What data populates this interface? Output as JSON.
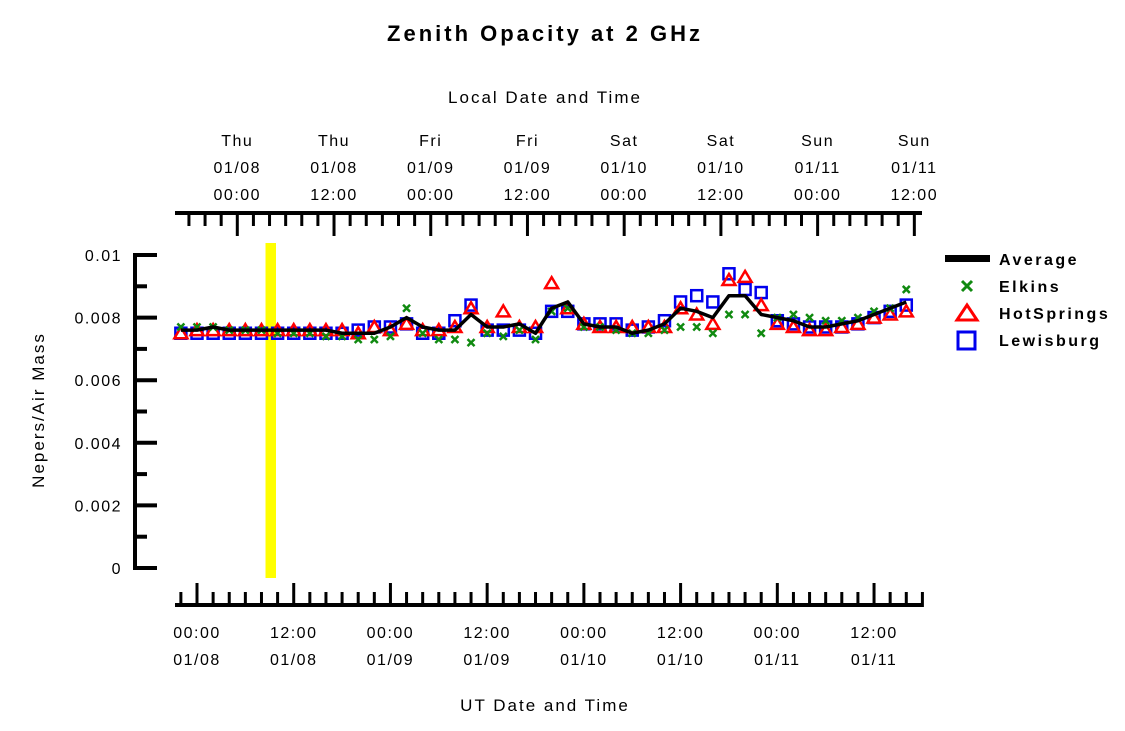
{
  "chart_data": {
    "type": "scatter",
    "title": "Zenith Opacity at 2 GHz",
    "xlabel": "UT Date and Time",
    "xlabel_top": "Local Date and Time",
    "ylabel": "Nepers/Air Mass",
    "x_units": "hours since 01/08 00:00 UT",
    "xlim": [
      -2.7,
      90
    ],
    "ylim": [
      0,
      0.01
    ],
    "yticks": [
      {
        "value": 0,
        "label": "0"
      },
      {
        "value": 0.002,
        "label": "0.002"
      },
      {
        "value": 0.004,
        "label": "0.004"
      },
      {
        "value": 0.006,
        "label": "0.006"
      },
      {
        "value": 0.008,
        "label": "0.008"
      },
      {
        "value": 0.01,
        "label": "0.01"
      }
    ],
    "xticks_bottom": [
      {
        "value": 0,
        "time": "00:00",
        "date": "01/08"
      },
      {
        "value": 12,
        "time": "12:00",
        "date": "01/08"
      },
      {
        "value": 24,
        "time": "00:00",
        "date": "01/09"
      },
      {
        "value": 36,
        "time": "12:00",
        "date": "01/09"
      },
      {
        "value": 48,
        "time": "00:00",
        "date": "01/10"
      },
      {
        "value": 60,
        "time": "12:00",
        "date": "01/10"
      },
      {
        "value": 72,
        "time": "00:00",
        "date": "01/11"
      },
      {
        "value": 84,
        "time": "12:00",
        "date": "01/11"
      }
    ],
    "xticks_top": [
      {
        "value": 5,
        "day": "Thu",
        "date": "01/08",
        "time": "00:00"
      },
      {
        "value": 17,
        "day": "Thu",
        "date": "01/08",
        "time": "12:00"
      },
      {
        "value": 29,
        "day": "Fri",
        "date": "01/09",
        "time": "00:00"
      },
      {
        "value": 41,
        "day": "Fri",
        "date": "01/09",
        "time": "12:00"
      },
      {
        "value": 53,
        "day": "Sat",
        "date": "01/10",
        "time": "00:00"
      },
      {
        "value": 65,
        "day": "Sat",
        "date": "01/10",
        "time": "12:00"
      },
      {
        "value": 77,
        "day": "Sun",
        "date": "01/11",
        "time": "00:00"
      },
      {
        "value": 89,
        "day": "Sun",
        "date": "01/11",
        "time": "12:00"
      }
    ],
    "highlight_band": {
      "x_range": [
        8.5,
        9.8
      ],
      "color": "#ffff00"
    },
    "legend_position": "right",
    "x": [
      -2,
      0,
      2,
      4,
      6,
      8,
      10,
      12,
      14,
      16,
      18,
      20,
      22,
      24,
      26,
      28,
      30,
      32,
      34,
      36,
      38,
      40,
      42,
      44,
      46,
      48,
      50,
      52,
      54,
      56,
      58,
      60,
      62,
      64,
      66,
      68,
      70,
      72,
      74,
      76,
      78,
      80,
      82,
      84,
      86,
      88
    ],
    "series": [
      {
        "name": "Average",
        "marker": "line",
        "color": "#000000",
        "values": [
          0.0076,
          0.0076,
          0.0077,
          0.0076,
          0.0076,
          0.0076,
          0.0076,
          0.0076,
          0.0076,
          0.0076,
          0.0075,
          0.0075,
          0.0075,
          0.0077,
          0.008,
          0.0077,
          0.0076,
          0.0076,
          0.0081,
          0.0077,
          0.0077,
          0.0078,
          0.0075,
          0.0083,
          0.0085,
          0.0078,
          0.0077,
          0.0077,
          0.0075,
          0.0076,
          0.0078,
          0.0083,
          0.0082,
          0.008,
          0.0087,
          0.0087,
          0.0081,
          0.008,
          0.0079,
          0.0077,
          0.0077,
          0.0078,
          0.0079,
          0.0081,
          0.0083,
          0.0085
        ]
      },
      {
        "name": "Elkins",
        "marker": "x",
        "color": "#108a10",
        "values": [
          0.0077,
          0.0077,
          0.0077,
          0.0076,
          0.0076,
          0.0076,
          0.0075,
          0.0075,
          0.0075,
          0.0074,
          0.0074,
          0.0073,
          0.0073,
          0.0074,
          0.0083,
          0.0075,
          0.0073,
          0.0073,
          0.0072,
          0.0075,
          0.0074,
          0.0076,
          0.0073,
          0.0082,
          0.0083,
          0.0077,
          0.0077,
          0.0076,
          0.0075,
          0.0075,
          0.0076,
          0.0077,
          0.0077,
          0.0075,
          0.0081,
          0.0081,
          0.0075,
          0.008,
          0.0081,
          0.008,
          0.0079,
          0.0079,
          0.008,
          0.0082,
          0.0083,
          0.0089
        ]
      },
      {
        "name": "HotSprings",
        "marker": "triangle",
        "color": "#ff0000",
        "values": [
          0.0075,
          0.0076,
          0.0076,
          0.0076,
          0.0076,
          0.0076,
          0.0076,
          0.0076,
          0.0076,
          0.0076,
          0.0076,
          0.0075,
          0.0077,
          0.0076,
          0.0078,
          0.0076,
          0.0076,
          0.0077,
          0.0083,
          0.0077,
          0.0082,
          0.0077,
          0.0077,
          0.0091,
          0.0083,
          0.0078,
          0.0077,
          0.0077,
          0.0077,
          0.0077,
          0.0077,
          0.0083,
          0.0081,
          0.0078,
          0.0092,
          0.0093,
          0.0084,
          0.0078,
          0.0077,
          0.0076,
          0.0076,
          0.0077,
          0.0078,
          0.008,
          0.0081,
          0.0082
        ]
      },
      {
        "name": "Lewisburg",
        "marker": "square",
        "color": "#0000ee",
        "values": [
          0.0075,
          0.0075,
          0.0075,
          0.0075,
          0.0075,
          0.0075,
          0.0075,
          0.0075,
          0.0075,
          0.0075,
          0.0075,
          0.0076,
          0.0077,
          0.0077,
          0.0078,
          0.0075,
          0.0075,
          0.0079,
          0.0084,
          0.0076,
          0.0076,
          0.0076,
          0.0075,
          0.0082,
          0.0082,
          0.0078,
          0.0078,
          0.0078,
          0.0076,
          0.0077,
          0.0079,
          0.0085,
          0.0087,
          0.0085,
          0.0094,
          0.0089,
          0.0088,
          0.0079,
          0.0078,
          0.0077,
          0.0077,
          0.0077,
          0.0078,
          0.008,
          0.0082,
          0.0084
        ]
      }
    ]
  }
}
